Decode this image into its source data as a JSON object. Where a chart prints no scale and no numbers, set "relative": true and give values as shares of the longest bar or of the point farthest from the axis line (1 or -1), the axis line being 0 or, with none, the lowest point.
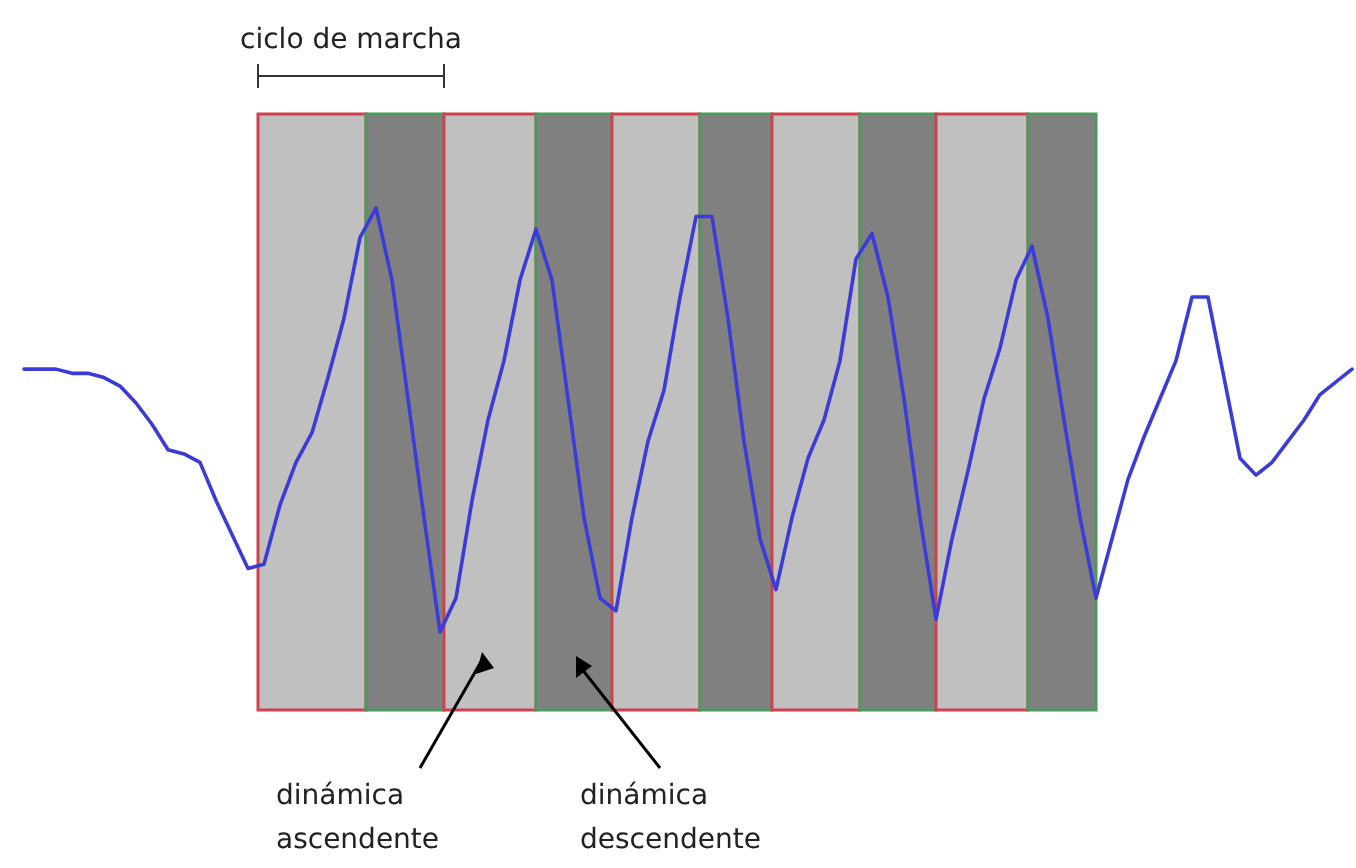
{
  "chart_data": {
    "type": "line",
    "relative": true,
    "categories": [
      null,
      null,
      null,
      null,
      null,
      null,
      null,
      null,
      null,
      null,
      null,
      null,
      null,
      null,
      null,
      null,
      null,
      null,
      null,
      null,
      null,
      null,
      null,
      null,
      null,
      null,
      null,
      null,
      null,
      null,
      null,
      null,
      null,
      null,
      null,
      null,
      null,
      null,
      null,
      null,
      null,
      null,
      null,
      null,
      null,
      null,
      null,
      null,
      null,
      null,
      null,
      null,
      null,
      null,
      null,
      null,
      null,
      null,
      null,
      null,
      null,
      null,
      null,
      null,
      null,
      null,
      null,
      null,
      null,
      null,
      null,
      null,
      null,
      null,
      null,
      null,
      null,
      null,
      null,
      null,
      null,
      null,
      null,
      null
    ],
    "series": [
      {
        "color": "#3b3bd9",
        "values": [
          0.62,
          0.62,
          0.62,
          0.61,
          0.61,
          0.6,
          0.58,
          0.54,
          0.49,
          0.43,
          0.42,
          0.4,
          0.31,
          0.23,
          0.15,
          0.16,
          0.3,
          0.4,
          0.47,
          0.6,
          0.74,
          0.93,
          1.0,
          0.83,
          0.55,
          0.27,
          0.0,
          0.08,
          0.31,
          0.5,
          0.64,
          0.83,
          0.95,
          0.83,
          0.55,
          0.27,
          0.08,
          0.05,
          0.27,
          0.45,
          0.57,
          0.79,
          0.98,
          0.98,
          0.74,
          0.45,
          0.22,
          0.1,
          0.27,
          0.41,
          0.5,
          0.64,
          0.88,
          0.94,
          0.79,
          0.55,
          0.27,
          0.03,
          0.22,
          0.38,
          0.55,
          0.67,
          0.83,
          0.91,
          0.74,
          0.5,
          0.27,
          0.08,
          0.22,
          0.36,
          0.46,
          0.55,
          0.64,
          0.79,
          0.79,
          0.6,
          0.41,
          0.37,
          0.4,
          0.45,
          0.5,
          0.56,
          0.59,
          0.62
        ]
      }
    ],
    "annotations": [
      "ciclo de marcha",
      "dinámica ascendente",
      "dinámica descendente"
    ]
  }
}
